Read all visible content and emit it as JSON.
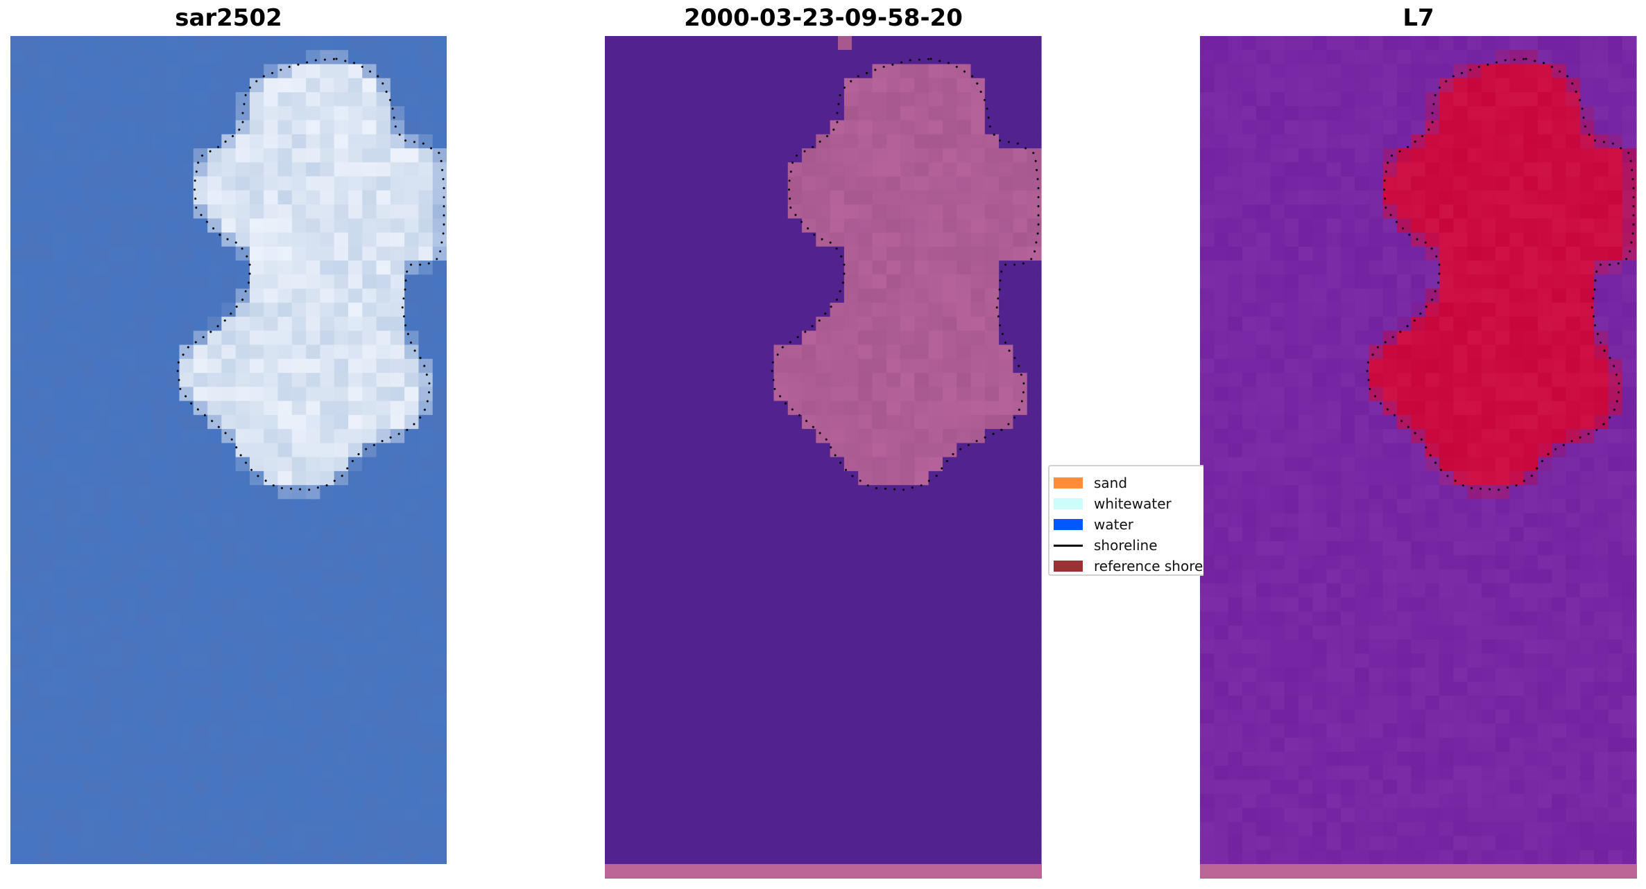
{
  "panels": [
    {
      "title": "sar2502"
    },
    {
      "title": "2000-03-23-09-58-20"
    },
    {
      "title": "L7"
    }
  ],
  "legend": {
    "items": [
      {
        "label": "sand",
        "kind": "patch",
        "color": "#ff8c3a"
      },
      {
        "label": "whitewater",
        "kind": "patch",
        "color": "#ccfcfc"
      },
      {
        "label": "water",
        "kind": "patch",
        "color": "#0059ff"
      },
      {
        "label": "shoreline",
        "kind": "line",
        "color": "#000000"
      },
      {
        "label": "reference shoreline",
        "kind": "patch",
        "color": "#993333"
      }
    ]
  },
  "colors": {
    "rgb_water": "#4b74bd",
    "rgb_land": "#c6d6ea",
    "class_background": "#52238f",
    "class_land": "#a7598f",
    "class_bottom_strip": "#bb6597",
    "index_background": "#7323a0",
    "index_land": "#c8063c",
    "shoreline": "#000000"
  }
}
